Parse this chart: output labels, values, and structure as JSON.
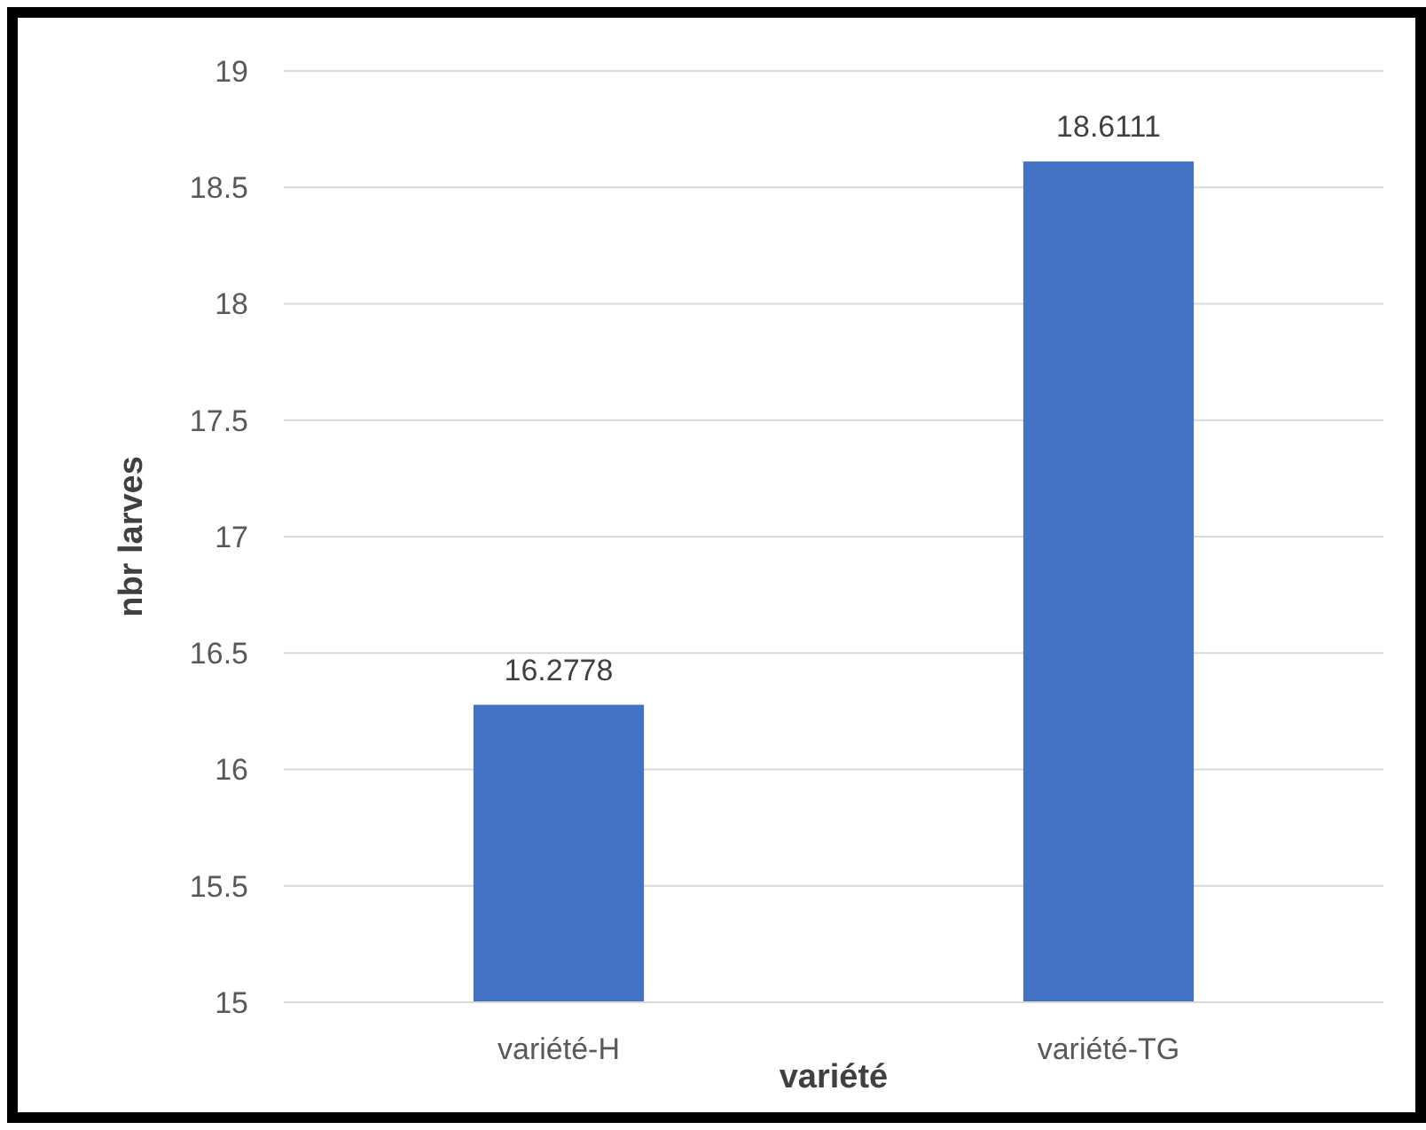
{
  "chart_data": {
    "type": "bar",
    "xlabel": "variété",
    "ylabel": "nbr larves",
    "categories": [
      "variété-H",
      "variété-TG"
    ],
    "values": [
      16.2778,
      18.6111
    ],
    "color": "#4472c4",
    "ylim": [
      15,
      19
    ],
    "yticks": [
      15,
      15.5,
      16,
      16.5,
      17,
      17.5,
      18,
      18.5,
      19
    ],
    "grid": "y",
    "data_labels": true
  }
}
